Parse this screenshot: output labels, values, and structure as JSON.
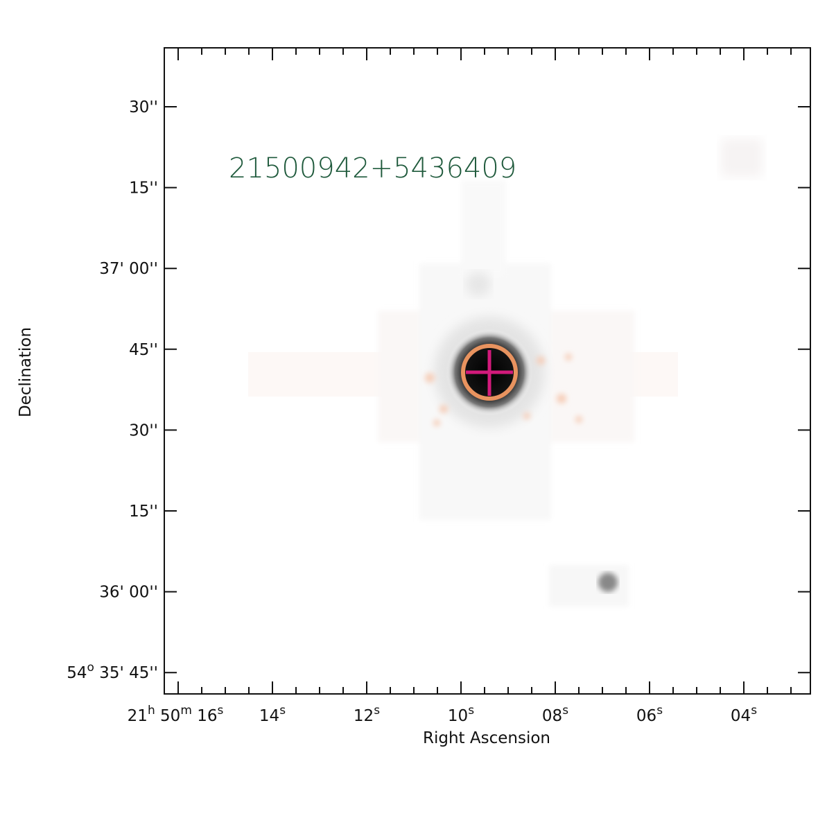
{
  "image": {
    "label": "21500942+5436409",
    "x_axis": {
      "title": "Right Ascension",
      "ticks": [
        [
          {
            "text": "21",
            "sup": "h"
          },
          {
            "text": "50",
            "sup": "m"
          },
          {
            "text": "16",
            "sup": "s"
          }
        ],
        [
          {
            "text": "14",
            "sup": "s"
          }
        ],
        [
          {
            "text": "12",
            "sup": "s"
          }
        ],
        [
          {
            "text": "10",
            "sup": "s"
          }
        ],
        [
          {
            "text": "08",
            "sup": "s"
          }
        ],
        [
          {
            "text": "06",
            "sup": "s"
          }
        ],
        [
          {
            "text": "04",
            "sup": "s"
          }
        ]
      ]
    },
    "y_axis": {
      "title": "Declination",
      "ticks": [
        [
          {
            "text": "30''"
          }
        ],
        [
          {
            "text": "15''"
          }
        ],
        [
          {
            "text": "37' 00''"
          }
        ],
        [
          {
            "text": "45''"
          }
        ],
        [
          {
            "text": "30''"
          }
        ],
        [
          {
            "text": "15''"
          }
        ],
        [
          {
            "text": "36' 00''"
          }
        ],
        [
          {
            "text": "54",
            "sup": "o"
          },
          {
            "text": " 35' 45''"
          }
        ]
      ]
    }
  }
}
